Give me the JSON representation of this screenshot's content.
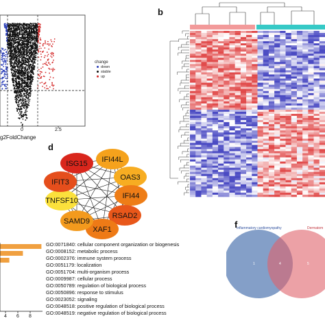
{
  "panels": {
    "b": "b",
    "d": "d",
    "f": "f"
  },
  "volcano": {
    "xlabel": "g2FoldChange",
    "x_ticks": [
      "0",
      "2.5"
    ],
    "legend_title": "change",
    "legend_items": [
      {
        "label": "down",
        "color": "#2b3fb8"
      },
      {
        "label": "stable",
        "color": "#111111"
      },
      {
        "label": "up",
        "color": "#d42a2a"
      }
    ]
  },
  "network": {
    "nodes": [
      {
        "label": "ISG15",
        "color": "#d9261c"
      },
      {
        "label": "IFI44L",
        "color": "#f5a21c"
      },
      {
        "label": "OAS3",
        "color": "#f7ad22"
      },
      {
        "label": "IFI44",
        "color": "#ee7d17"
      },
      {
        "label": "RSAD2",
        "color": "#e8571a"
      },
      {
        "label": "XAF1",
        "color": "#ee7a16"
      },
      {
        "label": "SAMD9",
        "color": "#f39a1d"
      },
      {
        "label": "TNFSF10",
        "color": "#fbe13c"
      },
      {
        "label": "IFIT3",
        "color": "#e54e1c"
      }
    ]
  },
  "go_terms": {
    "bars": [
      8.6,
      5.6,
      3.4
    ],
    "x_ticks": [
      "4",
      "6",
      "8"
    ],
    "lines": [
      "GO:0071840: cellular component organization or biogenesis",
      "GO:0008152: metabolic process",
      "GO:0002376: immune system process",
      "GO:0051179: localization",
      "GO:0051704: multi-organism process",
      "GO:0009987: cellular process",
      "GO:0050789: regulation of biological process",
      "GO:0050896: response to stimulus",
      "GO:0023052: signaling",
      "GO:0048518: positive regulation of biological process",
      "GO:0048519: negative regulation of biological process"
    ]
  },
  "venn": {
    "left_label": "Inflammatory cardiomyopathy",
    "right_label": "Dermatom",
    "left_count": "1",
    "center_count": "4",
    "right_count": "5"
  },
  "heatmap": {
    "group_colors": [
      "#f29a9a",
      "#36c9c6"
    ]
  }
}
